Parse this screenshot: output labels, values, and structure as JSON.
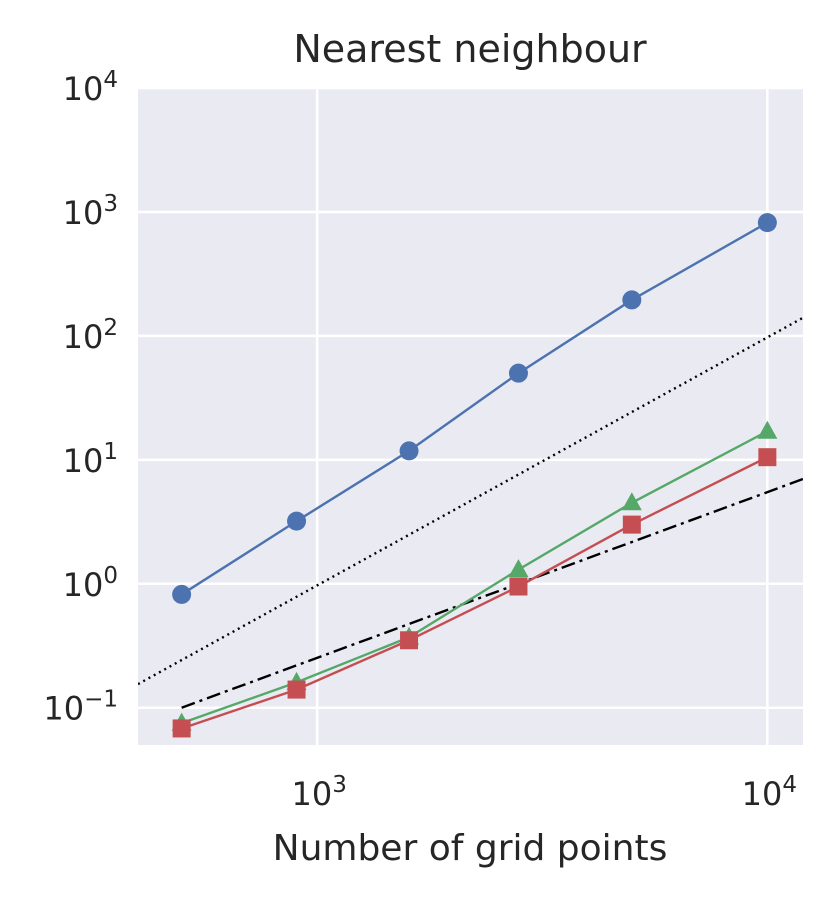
{
  "chart_data": {
    "type": "line",
    "title": "Nearest neighbour",
    "xlabel": "Number of grid points",
    "ylabel": "",
    "xscale": "log",
    "yscale": "log",
    "xlim": [
      400,
      12000
    ],
    "ylim": [
      0.05,
      10000
    ],
    "grid": true,
    "background": "#EAEAF2",
    "x_ticks": [
      {
        "value": 1000,
        "base": "10",
        "exp": "3"
      },
      {
        "value": 10000,
        "base": "10",
        "exp": "4"
      }
    ],
    "y_ticks": [
      {
        "value": 0.1,
        "base": "10",
        "exp": "−1"
      },
      {
        "value": 1,
        "base": "10",
        "exp": "0"
      },
      {
        "value": 10,
        "base": "10",
        "exp": "1"
      },
      {
        "value": 100,
        "base": "10",
        "exp": "2"
      },
      {
        "value": 1000,
        "base": "10",
        "exp": "3"
      },
      {
        "value": 10000,
        "base": "10",
        "exp": "4"
      }
    ],
    "series": [
      {
        "color": "#4C72B0",
        "marker": "circle",
        "x": [
          500,
          900,
          1600,
          2800,
          5000,
          10000
        ],
        "y": [
          0.82,
          3.2,
          11.8,
          50,
          195,
          820
        ]
      },
      {
        "color": "#55A868",
        "marker": "triangle",
        "x": [
          500,
          900,
          1600,
          2800,
          5000,
          10000
        ],
        "y": [
          0.075,
          0.16,
          0.37,
          1.3,
          4.5,
          17
        ]
      },
      {
        "color": "#C44E52",
        "marker": "square",
        "x": [
          500,
          900,
          1600,
          2800,
          5000,
          10000
        ],
        "y": [
          0.068,
          0.14,
          0.35,
          0.95,
          3.0,
          10.5
        ]
      }
    ],
    "reference_lines": [
      {
        "style": "dotted",
        "color": "#000000",
        "x": [
          400,
          12000
        ],
        "y": [
          0.155,
          140
        ]
      },
      {
        "style": "dashdot",
        "color": "#000000",
        "x": [
          500,
          12000
        ],
        "y": [
          0.1,
          7
        ]
      }
    ]
  }
}
